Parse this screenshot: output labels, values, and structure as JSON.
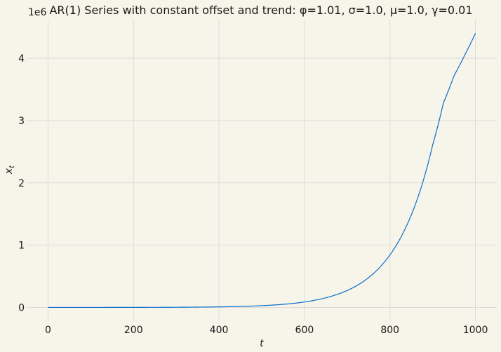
{
  "chart_data": {
    "type": "line",
    "title": "AR(1) Series with constant offset and trend: φ=1.01, σ=1.0, μ=1.0, γ=0.01",
    "xlabel": "t",
    "ylabel_base": "x",
    "ylabel_sub": "t",
    "y_offset_label": "1e6",
    "xlim": [
      -50,
      1050
    ],
    "ylim": [
      -0.22,
      4.62
    ],
    "y_units_note": "values in units of 1e6",
    "x_ticks": [
      0,
      200,
      400,
      600,
      800,
      1000
    ],
    "x_tick_labels": [
      "0",
      "200",
      "400",
      "600",
      "800",
      "1000"
    ],
    "y_ticks": [
      0,
      1,
      2,
      3,
      4
    ],
    "y_tick_labels": [
      "0",
      "1",
      "2",
      "3",
      "4"
    ],
    "grid": true,
    "line_color": "#0b6fc9",
    "series": [
      {
        "x": [
          0,
          100,
          200,
          300,
          400,
          500,
          550,
          600,
          650,
          700,
          750,
          800,
          850,
          900,
          925,
          950,
          975,
          1000
        ],
        "values": [
          0.0001,
          0.00031,
          0.00094,
          0.003,
          0.0092,
          0.0285,
          0.05,
          0.088,
          0.155,
          0.272,
          0.478,
          0.843,
          1.485,
          2.609,
          3.28,
          3.72,
          4.05,
          4.4
        ]
      }
    ]
  },
  "colors": {
    "background": "#f7f4e9",
    "grid": "#dcdcdc",
    "text": "#1a1a1a"
  }
}
